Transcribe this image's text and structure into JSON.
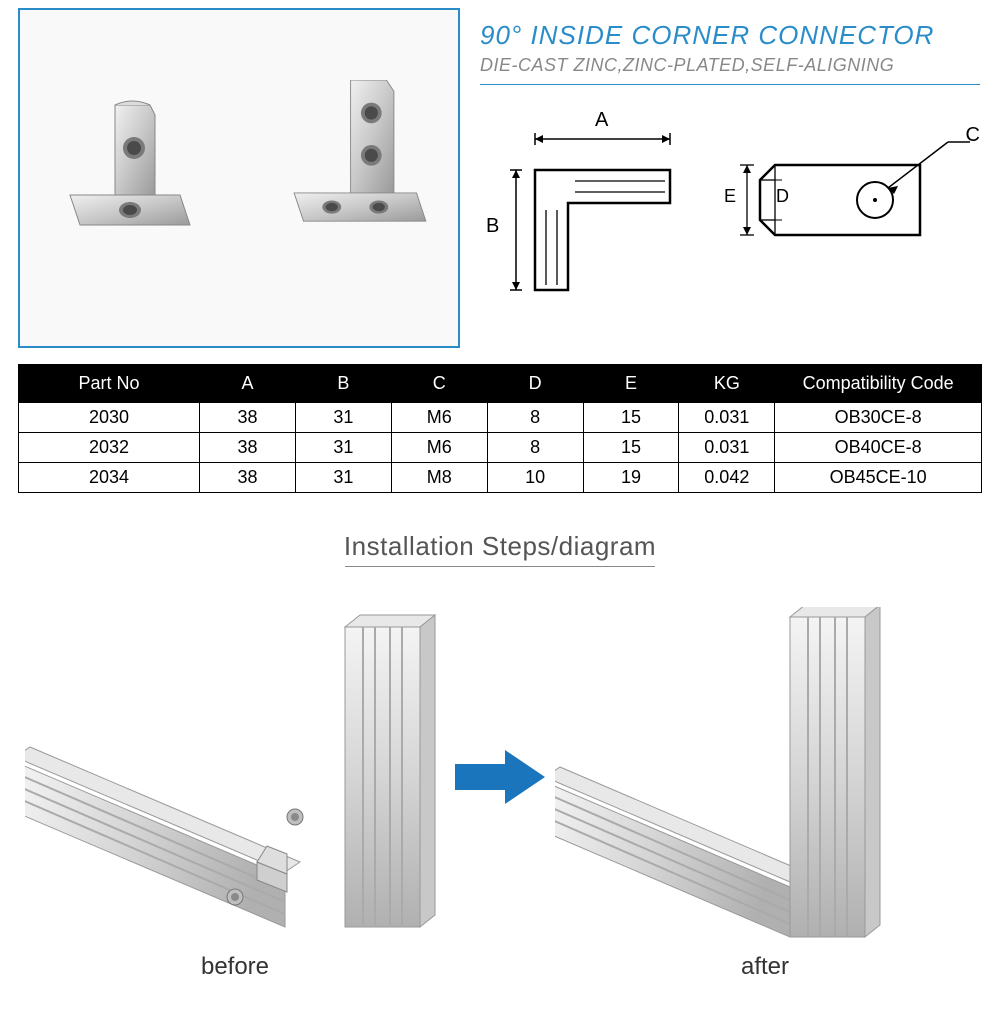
{
  "header": {
    "title": "90° INSIDE CORNER CONNECTOR",
    "subtitle": "DIE-CAST ZINC,ZINC-PLATED,SELF-ALIGNING"
  },
  "dimensions": {
    "labelA": "A",
    "labelB": "B",
    "labelC": "C",
    "labelD": "D",
    "labelE": "E"
  },
  "table": {
    "columns": [
      "Part No",
      "A",
      "B",
      "C",
      "D",
      "E",
      "KG",
      "Compatibility Code"
    ],
    "rows": [
      [
        "2030",
        "38",
        "31",
        "M6",
        "8",
        "15",
        "0.031",
        "OB30CE-8"
      ],
      [
        "2032",
        "38",
        "31",
        "M6",
        "8",
        "15",
        "0.031",
        "OB40CE-8"
      ],
      [
        "2034",
        "38",
        "31",
        "M8",
        "10",
        "19",
        "0.042",
        "OB45CE-10"
      ]
    ]
  },
  "installation": {
    "title": "Installation Steps/diagram",
    "before": "before",
    "after": "after"
  },
  "colors": {
    "accent": "#2a8cc9",
    "subtitle": "#888888",
    "table_header_bg": "#000000",
    "table_header_fg": "#ffffff",
    "arrow": "#1a75bc",
    "metal_light": "#e8e8e8",
    "metal_mid": "#cfcfcf",
    "metal_dark": "#9a9a9a",
    "line": "#000000"
  }
}
